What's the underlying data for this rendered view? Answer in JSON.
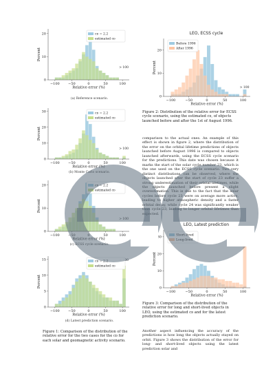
{
  "figure1": {
    "caption": "Figure 1: Comparison of the distribution of the relative error for the two cases for the c_D for each solar and geomagnetic activity scenario.",
    "panels": [
      {
        "subcaption": "(a) Reference scenario.",
        "chart_data": {
          "type": "bar",
          "xlabel": "Relative error (%)",
          "ylabel": "Percent",
          "xlim": [
            -120,
            120
          ],
          "ylim": [
            0,
            22
          ],
          "yticks": [
            0,
            10,
            20
          ],
          "xticks": [
            -100,
            -50,
            0,
            50,
            100
          ],
          "overflow_label": "> 100",
          "bin_width": 10,
          "bin_starts": [
            -110,
            -100,
            -90,
            -80,
            -70,
            -60,
            -50,
            -40,
            -30,
            -20,
            -10,
            0,
            10,
            20,
            30,
            40,
            50,
            60,
            70,
            80,
            90,
            100
          ],
          "series": [
            {
              "name": "c_D = 2.2",
              "color": "#9ecae1",
              "values": [
                0,
                1,
                1,
                1,
                2,
                3,
                4,
                5,
                8,
                11,
                15,
                20,
                13,
                6,
                4,
                3,
                2,
                1,
                1,
                1,
                0,
                0
              ]
            },
            {
              "name": "estimated c_D",
              "color": "#c7de8c",
              "values": [
                0,
                1,
                1,
                2,
                3,
                4,
                5,
                7,
                9,
                12,
                10,
                9,
                8,
                5,
                4,
                3,
                2,
                1,
                1,
                1,
                0,
                0
              ]
            }
          ]
        }
      },
      {
        "subcaption": "(b) Monte Carlo scenario.",
        "chart_data": {
          "type": "bar",
          "xlabel": "Relative error (%)",
          "ylabel": "Percent",
          "xlim": [
            -120,
            120
          ],
          "ylim": [
            0,
            32
          ],
          "yticks": [
            0,
            10,
            20,
            30
          ],
          "xticks": [
            -100,
            -50,
            0,
            50,
            100
          ],
          "overflow_label": "> 100",
          "bin_width": 10,
          "bin_starts": [
            -110,
            -100,
            -90,
            -80,
            -70,
            -60,
            -50,
            -40,
            -30,
            -20,
            -10,
            0,
            10,
            20,
            30,
            40,
            50,
            60,
            70,
            80,
            90,
            100
          ],
          "series": [
            {
              "name": "c_D = 2.2",
              "color": "#9ecae1",
              "values": [
                0,
                1,
                1,
                1,
                2,
                3,
                4,
                6,
                10,
                16,
                28,
                22,
                14,
                7,
                4,
                3,
                2,
                1,
                1,
                1,
                0,
                1
              ]
            },
            {
              "name": "estimated c_D",
              "color": "#c7de8c",
              "values": [
                0,
                1,
                1,
                2,
                3,
                5,
                6,
                9,
                13,
                18,
                15,
                12,
                10,
                6,
                4,
                3,
                2,
                1,
                1,
                1,
                0,
                2
              ]
            }
          ]
        }
      },
      {
        "subcaption": "(c) ECSS cycle scenario.",
        "chart_data": {
          "type": "bar",
          "xlabel": "Relative error (%)",
          "ylabel": "Percent",
          "xlim": [
            -120,
            120
          ],
          "ylim": [
            0,
            22
          ],
          "yticks": [
            0,
            10,
            20
          ],
          "xticks": [
            -100,
            -50,
            0,
            50,
            100
          ],
          "overflow_label": "> 100",
          "bin_width": 10,
          "bin_starts": [
            -110,
            -100,
            -90,
            -80,
            -70,
            -60,
            -50,
            -40,
            -30,
            -20,
            -10,
            0,
            10,
            20,
            30,
            40,
            50,
            60,
            70,
            80,
            90,
            100
          ],
          "series": [
            {
              "name": "c_D = 2.2",
              "color": "#9ecae1",
              "values": [
                0,
                1,
                1,
                2,
                3,
                4,
                6,
                9,
                13,
                16,
                21,
                18,
                11,
                6,
                3,
                2,
                1,
                1,
                1,
                0,
                0,
                0
              ]
            },
            {
              "name": "estimated c_D",
              "color": "#c7de8c",
              "values": [
                0,
                1,
                2,
                3,
                4,
                6,
                8,
                10,
                12,
                14,
                13,
                11,
                8,
                5,
                3,
                2,
                1,
                1,
                1,
                0,
                0,
                0
              ]
            }
          ]
        }
      },
      {
        "subcaption": "(d) Latest prediction scenario.",
        "chart_data": {
          "type": "bar",
          "xlabel": "Relative error (%)",
          "ylabel": "Percent",
          "xlim": [
            -120,
            120
          ],
          "ylim": [
            0,
            16
          ],
          "yticks": [
            0,
            5,
            10,
            15
          ],
          "xticks": [
            -100,
            -50,
            0,
            50,
            100
          ],
          "overflow_label": "> 100",
          "bin_width": 10,
          "bin_starts": [
            -110,
            -100,
            -90,
            -80,
            -70,
            -60,
            -50,
            -40,
            -30,
            -20,
            -10,
            0,
            10,
            20,
            30,
            40,
            50,
            60,
            70,
            80,
            90,
            100
          ],
          "series": [
            {
              "name": "c_D = 2.2",
              "color": "#9ecae1",
              "values": [
                0,
                1,
                2,
                3,
                4,
                5,
                7,
                9,
                10,
                11,
                10,
                8,
                6,
                5,
                4,
                3,
                3,
                2,
                2,
                2,
                1,
                9
              ]
            },
            {
              "name": "estimated c_D",
              "color": "#c7de8c",
              "values": [
                0,
                1,
                1,
                2,
                3,
                4,
                6,
                8,
                9,
                10,
                9,
                8,
                7,
                6,
                5,
                4,
                3,
                3,
                2,
                2,
                1,
                13
              ]
            }
          ]
        }
      }
    ]
  },
  "figure2": {
    "title": "LEO, ECSS cycle",
    "caption": "Figure 2: Distribution of the relative error for ECSS cycle scenario, using the estimated c_D, of objects launched before and after the 1st of August 1996.",
    "chart_data": {
      "type": "bar",
      "title": "LEO, ECSS cycle",
      "xlabel": "Relative error (%)",
      "ylabel": "Percent",
      "xlim": [
        -120,
        120
      ],
      "ylim": [
        0,
        25
      ],
      "yticks": [
        0,
        10,
        20
      ],
      "xticks": [
        -100,
        -50,
        0,
        50,
        100
      ],
      "overflow_label": "> 100",
      "bin_width": 10,
      "bin_starts": [
        -110,
        -100,
        -90,
        -80,
        -70,
        -60,
        -50,
        -40,
        -30,
        -20,
        -10,
        0,
        10,
        20,
        30,
        40,
        50,
        60,
        70,
        80,
        90,
        100
      ],
      "series": [
        {
          "name": "Before 1996",
          "color": "#9ecae1",
          "values": [
            0,
            1,
            1,
            1,
            2,
            3,
            4,
            6,
            9,
            12,
            17,
            22,
            14,
            7,
            4,
            3,
            2,
            1,
            1,
            1,
            0,
            3
          ]
        },
        {
          "name": "After 1996",
          "color": "#fdc6a4",
          "values": [
            0,
            2,
            3,
            4,
            6,
            9,
            12,
            16,
            20,
            14,
            9,
            5,
            3,
            2,
            1,
            1,
            1,
            0,
            0,
            0,
            0,
            1
          ]
        }
      ]
    }
  },
  "body": {
    "paragraph1": "comparison to the actual ones. An example of this effect is shown in figure 2, where the distribution of the error on the orbital lifetime predictions of objects launched before August 1996 is compared to objects launched afterwards, using the ECSS cycle scenario for the predictions. This date was chosen because it marks the start of the solar cycle number 23, which is the one used on the ECSS cycle scenario. Two very distinct distributions can be observed, where the objects launched after the start of cycle 23 suffer a strong underestimation of their orbital lifetimes, while the objects launched before present a slight overestimation. This is due to the fact that the solar cycles before cycle 23 were on average more active, leading to higher atmospheric density and a faster orbital decay, while cycle 24 was significantly weaker than cycle 23, leading to longer orbital lifetimes than expected.",
    "paragraph2": "Another aspect influencing the accuracy of the predictions is how long the objects actually stayed on orbit. Figure 3 shows the distribution of the error for long- and short-lived objects using the latest prediction solar and"
  },
  "figure3": {
    "title": "LEO, Latest prediction",
    "caption": "Figure 3: Comparison of the distribution of the relative error for long and short-lived objects in LEO, using the estimated c_D and for the latest prediction scenario.",
    "chart_data": {
      "type": "bar",
      "title": "LEO, Latest prediction",
      "xlabel": "Relative error (%)",
      "ylabel": "Percent",
      "xlim": [
        -120,
        120
      ],
      "ylim": [
        0,
        34
      ],
      "yticks": [
        0,
        10,
        20,
        30
      ],
      "xticks": [
        -100,
        -50,
        0,
        50,
        100
      ],
      "overflow_label": "> 100",
      "bin_width": 10,
      "bin_starts": [
        -110,
        -100,
        -90,
        -80,
        -70,
        -60,
        -50,
        -40,
        -30,
        -20,
        -10,
        0,
        10,
        20,
        30,
        40,
        50,
        60,
        70,
        80,
        90,
        100
      ],
      "series": [
        {
          "name": "Short-lived",
          "color": "#9ecae1",
          "values": [
            0,
            1,
            2,
            3,
            4,
            6,
            8,
            11,
            13,
            14,
            13,
            10,
            7,
            5,
            3,
            2,
            1,
            1,
            1,
            0,
            0,
            1
          ]
        },
        {
          "name": "Long-lived",
          "color": "#fdc6a4",
          "values": [
            0,
            1,
            1,
            2,
            3,
            3,
            4,
            5,
            6,
            7,
            7,
            7,
            6,
            6,
            5,
            5,
            4,
            4,
            3,
            3,
            2,
            26
          ]
        }
      ]
    }
  },
  "colors": {
    "blue": "#9ecae1",
    "green": "#c7de8c",
    "orange": "#fdc6a4",
    "overlap_green_blue": "#a9d3b0",
    "overlap_orange_blue": "#c9c9c4",
    "watermark": "#5e6f7e"
  }
}
